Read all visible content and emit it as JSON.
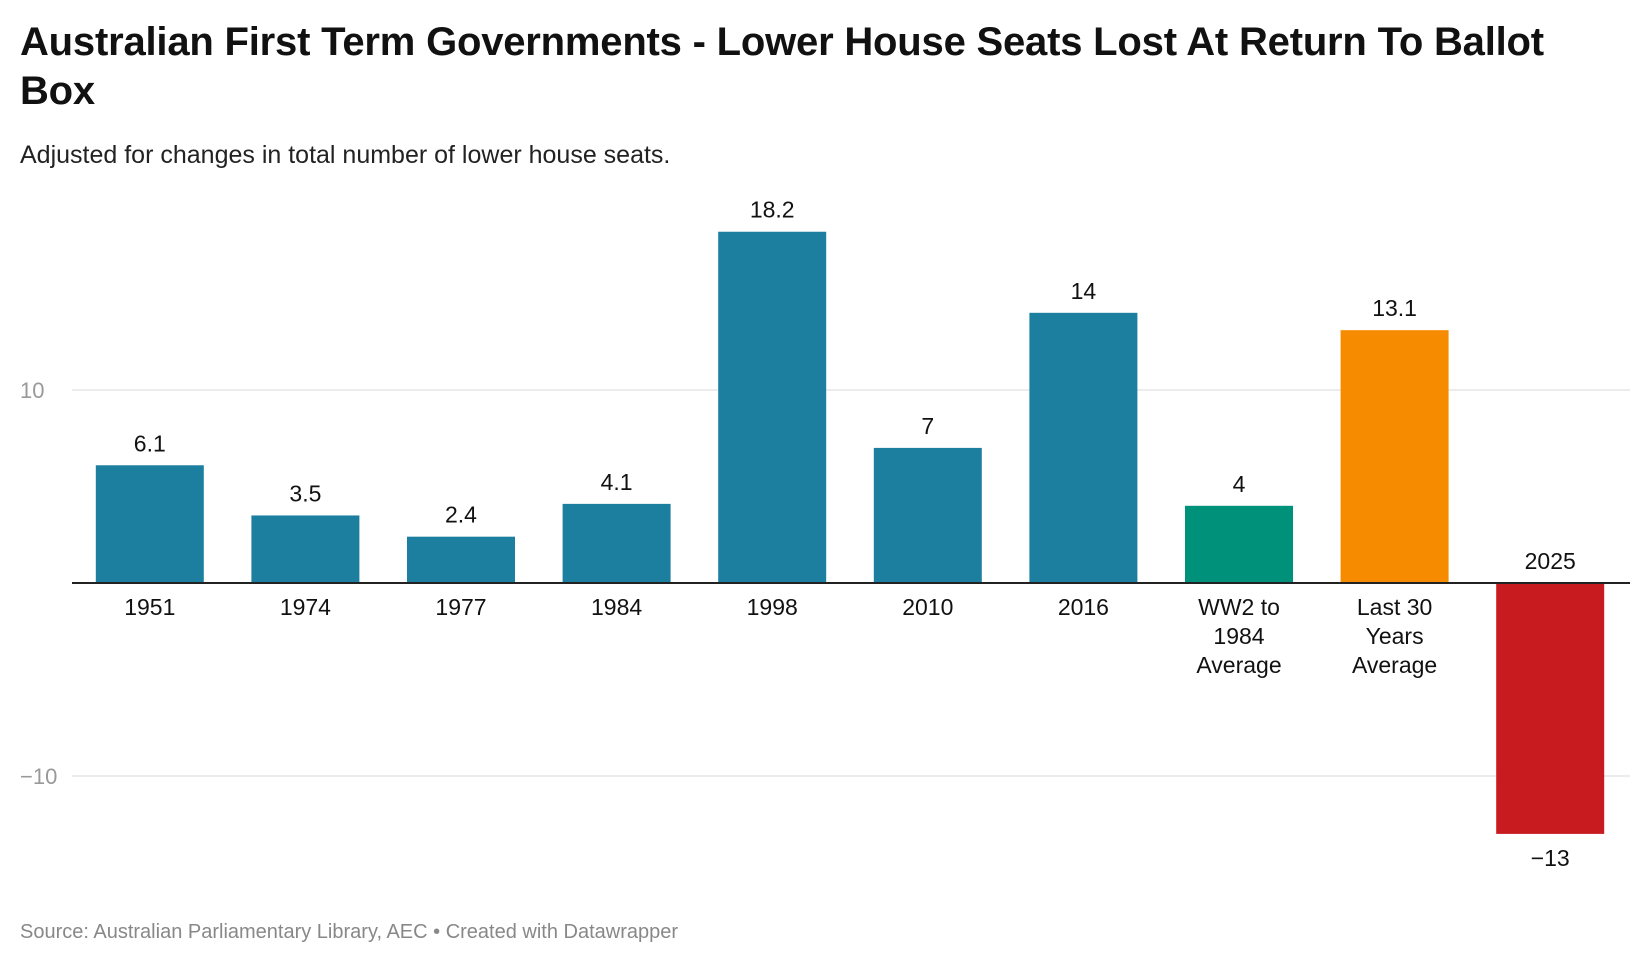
{
  "header": {
    "title": "Australian First Term Governments - Lower House Seats Lost At Return To Ballot Box",
    "subtitle": "Adjusted for changes in total number of lower house seats."
  },
  "footer": {
    "source": "Source: Australian Parliamentary Library, AEC • Created with Datawrapper"
  },
  "chart_data": {
    "type": "bar",
    "title": "Australian First Term Governments - Lower House Seats Lost At Return To Ballot Box",
    "subtitle": "Adjusted for changes in total number of lower house seats.",
    "xlabel": "",
    "ylabel": "",
    "ylim": [
      -13,
      18.2
    ],
    "yticks": [
      {
        "value": 10,
        "label": "10"
      },
      {
        "value": -10,
        "label": "−10"
      }
    ],
    "grid": true,
    "legend": "none",
    "categories": [
      [
        "1951"
      ],
      [
        "1974"
      ],
      [
        "1977"
      ],
      [
        "1984"
      ],
      [
        "1998"
      ],
      [
        "2010"
      ],
      [
        "2016"
      ],
      [
        "WW2 to",
        "1984",
        "Average"
      ],
      [
        "Last 30",
        "Years",
        "Average"
      ],
      [
        "2025"
      ]
    ],
    "values": [
      6.1,
      3.5,
      2.4,
      4.1,
      18.2,
      7,
      14,
      4,
      13.1,
      -13
    ],
    "value_labels": [
      "6.1",
      "3.5",
      "2.4",
      "4.1",
      "18.2",
      "7",
      "14",
      "4",
      "13.1",
      "−13"
    ],
    "colors": [
      "#1d7fa0",
      "#1d7fa0",
      "#1d7fa0",
      "#1d7fa0",
      "#1d7fa0",
      "#1d7fa0",
      "#1d7fa0",
      "#00917a",
      "#f78b00",
      "#c71b1f"
    ]
  }
}
